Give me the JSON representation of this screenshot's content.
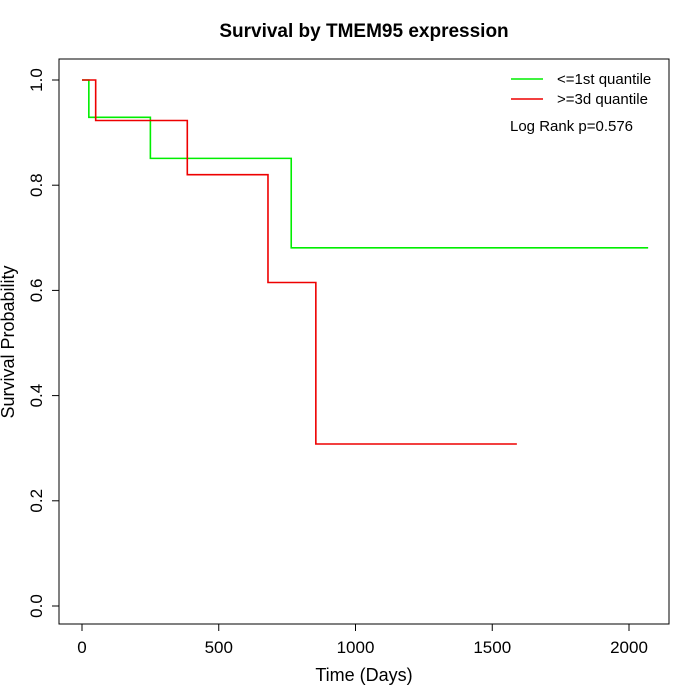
{
  "chart_data": {
    "type": "line",
    "title": "Survival by TMEM95 expression",
    "xlabel": "Time (Days)",
    "ylabel": "Survival Probability",
    "xlim": [
      0,
      2100
    ],
    "ylim": [
      0,
      1.0
    ],
    "x_ticks": [
      0,
      500,
      1000,
      1500,
      2000
    ],
    "x_tick_labels": [
      "0",
      "500",
      "1000",
      "1500",
      "2000"
    ],
    "y_ticks": [
      0.0,
      0.2,
      0.4,
      0.6,
      0.8,
      1.0
    ],
    "y_tick_labels": [
      "0.0",
      "0.2",
      "0.4",
      "0.6",
      "0.8",
      "1.0"
    ],
    "grid": false,
    "legend_position": "top-right",
    "annotation": "Log Rank p=0.576",
    "series": [
      {
        "name": "<=1st quantile",
        "color": "#00ee00",
        "style": "step",
        "x": [
          0,
          25,
          250,
          765,
          2070
        ],
        "y": [
          1.0,
          0.929,
          0.851,
          0.681,
          0.681
        ]
      },
      {
        "name": ">=3d quantile",
        "color": "#ee0000",
        "style": "step",
        "x": [
          0,
          50,
          385,
          680,
          855,
          1590
        ],
        "y": [
          1.0,
          0.923,
          0.82,
          0.615,
          0.308,
          0.308
        ]
      }
    ]
  }
}
